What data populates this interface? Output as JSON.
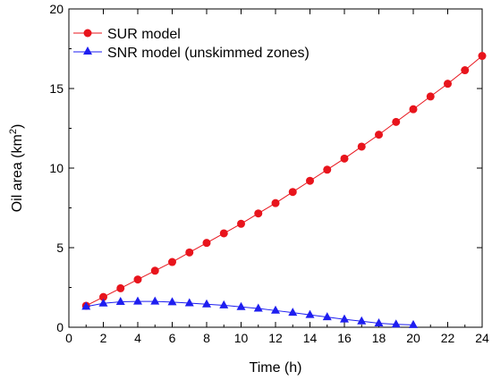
{
  "chart_data": {
    "type": "line",
    "xlabel": "Time (h)",
    "ylabel_main": "Oil area (km",
    "ylabel_sup": "2",
    "ylabel_tail": ")",
    "xlim": [
      0,
      24
    ],
    "ylim": [
      0,
      20
    ],
    "xticks": [
      0,
      2,
      4,
      6,
      8,
      10,
      12,
      14,
      16,
      18,
      20,
      22,
      24
    ],
    "yticks": [
      0,
      5,
      10,
      15,
      20
    ],
    "grid": false,
    "legend_position": "top-left",
    "series": [
      {
        "name": "SUR model",
        "color": "#e8141c",
        "marker": "circle",
        "x": [
          1,
          2,
          3,
          4,
          5,
          6,
          7,
          8,
          9,
          10,
          11,
          12,
          13,
          14,
          15,
          16,
          17,
          18,
          19,
          20,
          21,
          22,
          23,
          24
        ],
        "y": [
          1.35,
          1.9,
          2.45,
          3.0,
          3.55,
          4.1,
          4.7,
          5.3,
          5.9,
          6.5,
          7.15,
          7.8,
          8.5,
          9.2,
          9.9,
          10.6,
          11.35,
          12.1,
          12.9,
          13.7,
          14.5,
          15.3,
          16.15,
          17.05
        ]
      },
      {
        "name": "SNR model (unskimmed zones)",
        "color": "#1e1ef0",
        "marker": "triangle",
        "x": [
          1,
          2,
          3,
          4,
          5,
          6,
          7,
          8,
          9,
          10,
          11,
          12,
          13,
          14,
          15,
          16,
          17,
          18,
          19,
          20
        ],
        "y": [
          1.3,
          1.5,
          1.6,
          1.62,
          1.62,
          1.58,
          1.52,
          1.45,
          1.38,
          1.28,
          1.18,
          1.05,
          0.92,
          0.78,
          0.64,
          0.5,
          0.38,
          0.25,
          0.18,
          0.15
        ]
      }
    ]
  }
}
